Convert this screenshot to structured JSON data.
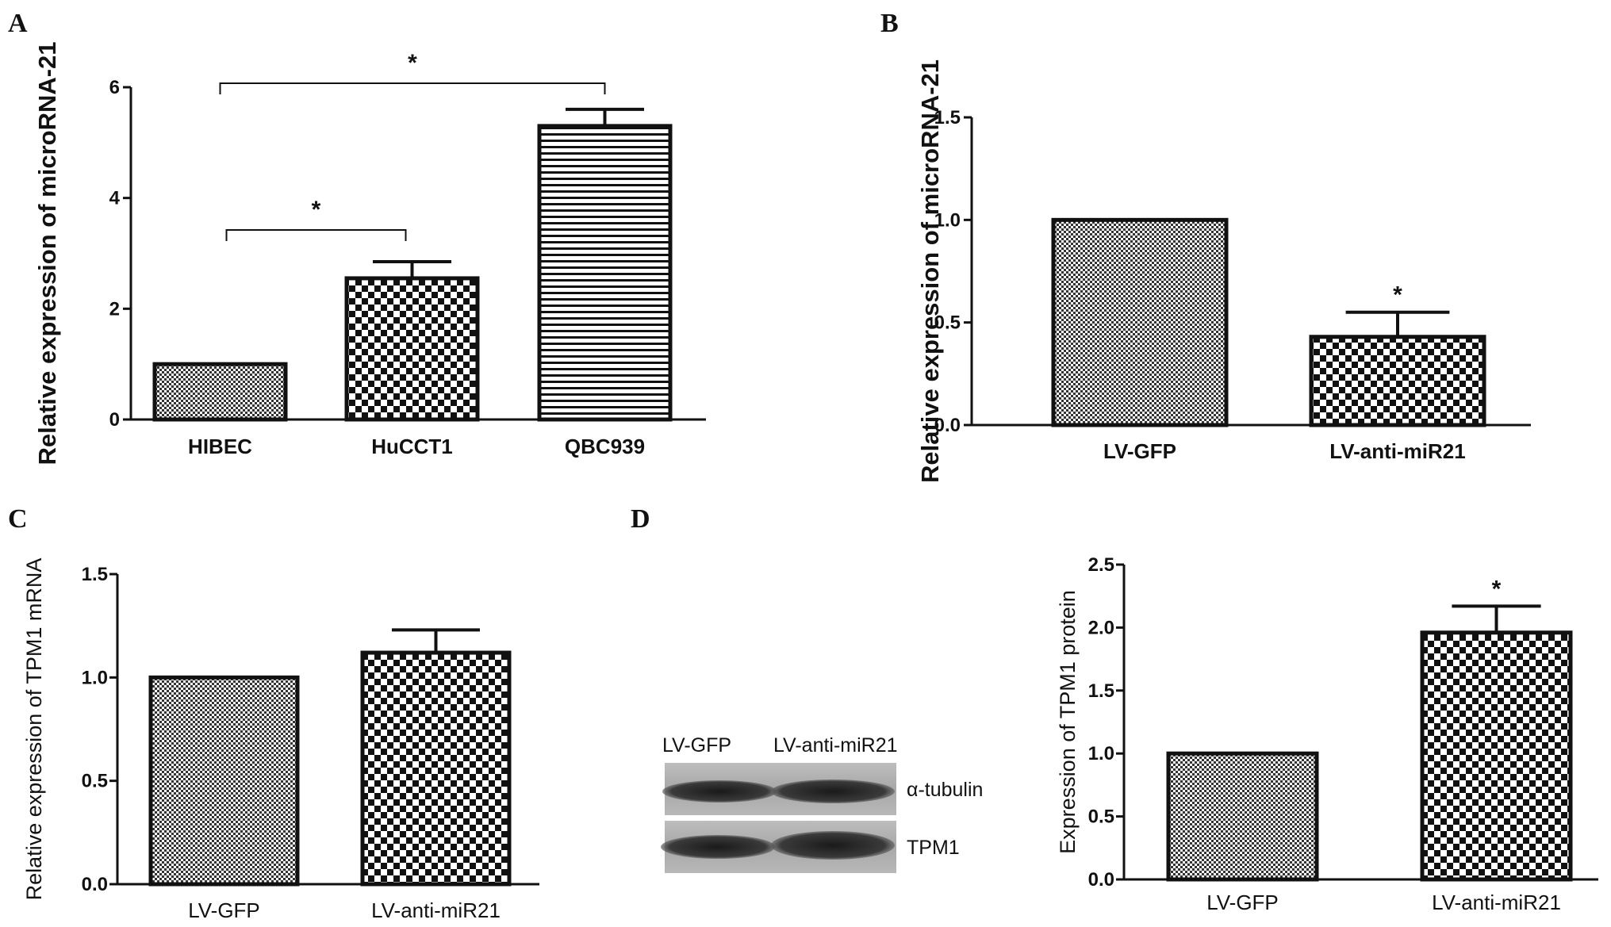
{
  "panels": {
    "A": "A",
    "B": "B",
    "C": "C",
    "D": "D"
  },
  "blot": {
    "lanes": [
      "LV-GFP",
      "LV-anti-miR21"
    ],
    "bands": [
      "α-tubulin",
      "TPM1"
    ]
  },
  "chart_data": [
    {
      "id": "A",
      "type": "bar",
      "categories": [
        "HIBEC",
        "HuCCT1",
        "QBC939"
      ],
      "values": [
        1.0,
        2.55,
        5.3
      ],
      "errors": [
        0,
        0.3,
        0.3
      ],
      "patterns": [
        "fine-check",
        "check",
        "hlines"
      ],
      "ylabel": "Relative expression of microRNA-21",
      "ylim": [
        0,
        6
      ],
      "yticks": [
        "0",
        "2",
        "4",
        "6"
      ],
      "brackets": [
        {
          "from": 0,
          "to": 2,
          "label": "*"
        },
        {
          "from": 0,
          "to": 1,
          "label": "*"
        }
      ],
      "grid": false
    },
    {
      "id": "B",
      "type": "bar",
      "categories": [
        "LV-GFP",
        "LV-anti-miR21"
      ],
      "values": [
        1.0,
        0.43
      ],
      "errors": [
        0,
        0.12
      ],
      "patterns": [
        "fine-check",
        "check"
      ],
      "ylabel": "Relative expression of microRNA-21",
      "ylim": [
        0,
        1.5
      ],
      "yticks": [
        "0.0",
        "0.5",
        "1.0",
        "1.5"
      ],
      "stars": [
        "",
        "*"
      ],
      "grid": false
    },
    {
      "id": "C",
      "type": "bar",
      "categories": [
        "LV-GFP",
        "LV-anti-miR21"
      ],
      "values": [
        1.0,
        1.12
      ],
      "errors": [
        0,
        0.11
      ],
      "patterns": [
        "fine-check",
        "check"
      ],
      "ylabel": "Relative expression of TPM1 mRNA",
      "ylim": [
        0,
        1.5
      ],
      "yticks": [
        "0.0",
        "0.5",
        "1.0",
        "1.5"
      ],
      "stars": [
        "",
        ""
      ],
      "grid": false
    },
    {
      "id": "D",
      "type": "bar",
      "categories": [
        "LV-GFP",
        "LV-anti-miR21"
      ],
      "values": [
        1.0,
        1.96
      ],
      "errors": [
        0,
        0.21
      ],
      "patterns": [
        "fine-check",
        "check"
      ],
      "ylabel": "Expression of TPM1 protein",
      "ylim": [
        0,
        2.5
      ],
      "yticks": [
        "0.0",
        "0.5",
        "1.0",
        "1.5",
        "2.0",
        "2.5"
      ],
      "stars": [
        "",
        "*"
      ],
      "grid": false
    }
  ]
}
